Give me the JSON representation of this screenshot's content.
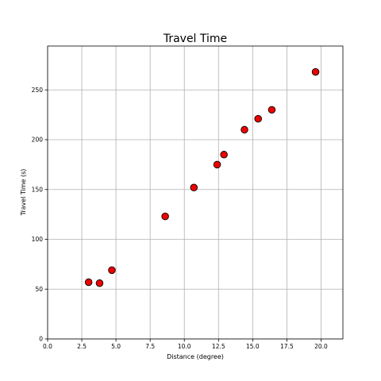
{
  "chart_data": {
    "type": "scatter",
    "title": "Travel Time",
    "xlabel": "Distance (degree)",
    "ylabel": "Travel Time (s)",
    "xlim": [
      0,
      21.6
    ],
    "ylim": [
      0,
      294
    ],
    "xticks": [
      0.0,
      2.5,
      5.0,
      7.5,
      10.0,
      12.5,
      15.0,
      17.5,
      20.0
    ],
    "xtick_labels": [
      "0.0",
      "2.5",
      "5.0",
      "7.5",
      "10.0",
      "12.5",
      "15.0",
      "17.5",
      "20.0"
    ],
    "yticks": [
      0,
      50,
      100,
      150,
      200,
      250
    ],
    "ytick_labels": [
      "0",
      "50",
      "100",
      "150",
      "200",
      "250"
    ],
    "grid": true,
    "marker_color": "#ee0000",
    "marker_edge_color": "#000000",
    "points": [
      {
        "x": 3.0,
        "y": 57
      },
      {
        "x": 3.8,
        "y": 56
      },
      {
        "x": 4.7,
        "y": 69
      },
      {
        "x": 8.6,
        "y": 123
      },
      {
        "x": 10.7,
        "y": 152
      },
      {
        "x": 12.4,
        "y": 175
      },
      {
        "x": 12.9,
        "y": 185
      },
      {
        "x": 14.4,
        "y": 210
      },
      {
        "x": 15.4,
        "y": 221
      },
      {
        "x": 16.4,
        "y": 230
      },
      {
        "x": 19.6,
        "y": 268
      }
    ]
  }
}
